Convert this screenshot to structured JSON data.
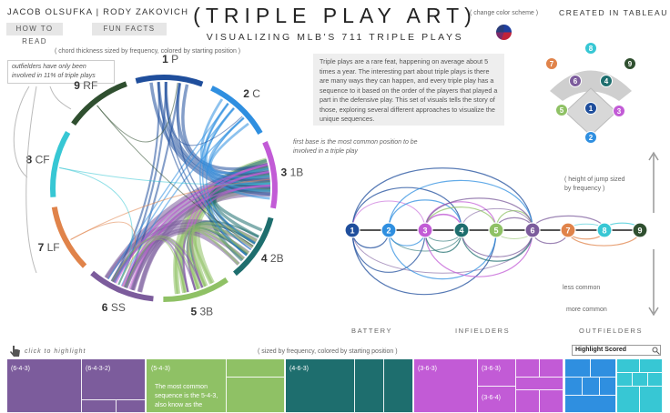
{
  "header": {
    "authors": "JACOB OLSUFKA | RODY ZAKOVICH",
    "how_to_read": "HOW TO READ",
    "fun_facts": "FUN FACTS",
    "title": "(TRIPLE PLAY ART)",
    "subtitle": "VISUALIZING MLB'S 711 TRIPLE PLAYS",
    "change_color": "( change color scheme )",
    "created_in": "CREATED IN TABLEAU"
  },
  "chord": {
    "caption": "( chord thickness sized by frequency, colored by starting position )",
    "positions": [
      {
        "num": "1",
        "name": "P",
        "color": "#1f4e9c"
      },
      {
        "num": "2",
        "name": "C",
        "color": "#2f8fe0"
      },
      {
        "num": "3",
        "name": "1B",
        "color": "#c25bd6"
      },
      {
        "num": "4",
        "name": "2B",
        "color": "#1e6e6e"
      },
      {
        "num": "5",
        "name": "3B",
        "color": "#8fc165"
      },
      {
        "num": "6",
        "name": "SS",
        "color": "#7c5c9c"
      },
      {
        "num": "7",
        "name": "LF",
        "color": "#e0834a"
      },
      {
        "num": "8",
        "name": "CF",
        "color": "#37c7d4"
      },
      {
        "num": "9",
        "name": "RF",
        "color": "#2f4f2f"
      }
    ],
    "outfielder_note": "outfielders have only been involved in 11% of triple plays",
    "first_base_note": "first base is the most common position to be involved in a triple play"
  },
  "intro_text": "Triple plays are a rare feat, happening on average about 5 times a year. The interesting part about triple plays is there are many ways they can happen, and every triple play has a sequence to it based on the order of the players that played a part in the defensive play. This set of visuals tells the story of those, exploring several different approaches to visualize the unique sequences.",
  "arc": {
    "jump_note": "( height of jump sized by frequency )",
    "less_common": "less common",
    "more_common": "more common",
    "battery": "BATTERY",
    "infielders": "INFIELDERS",
    "outfielders": "OUTFIELDERS",
    "nodes": [
      "1",
      "2",
      "3",
      "4",
      "5",
      "6",
      "7",
      "8",
      "9"
    ]
  },
  "field": {
    "nodes": [
      "1",
      "2",
      "3",
      "4",
      "5",
      "6",
      "7",
      "8",
      "9"
    ]
  },
  "treemap": {
    "click_to_highlight": "click to highlight",
    "caption": "( sized by frequency, colored by starting position )",
    "search_label": "Highlight Scored",
    "labels": {
      "p1": "(6-4-3)",
      "p2": "(6-4-3-2)",
      "g1": "(5-4-3)",
      "g_note": "The most common sequence is the 5-4-3, also know as the",
      "t1": "(4-6-3)",
      "m1": "(3-6-3)",
      "m2": "(3-6-3)",
      "m3": "(3-6-4)"
    },
    "colors": {
      "purple": "#7c5c9c",
      "green": "#8fc165",
      "teal": "#1e6e6e",
      "magenta": "#c25bd6",
      "blue": "#2f8fe0",
      "cyan": "#37c7d4"
    }
  }
}
